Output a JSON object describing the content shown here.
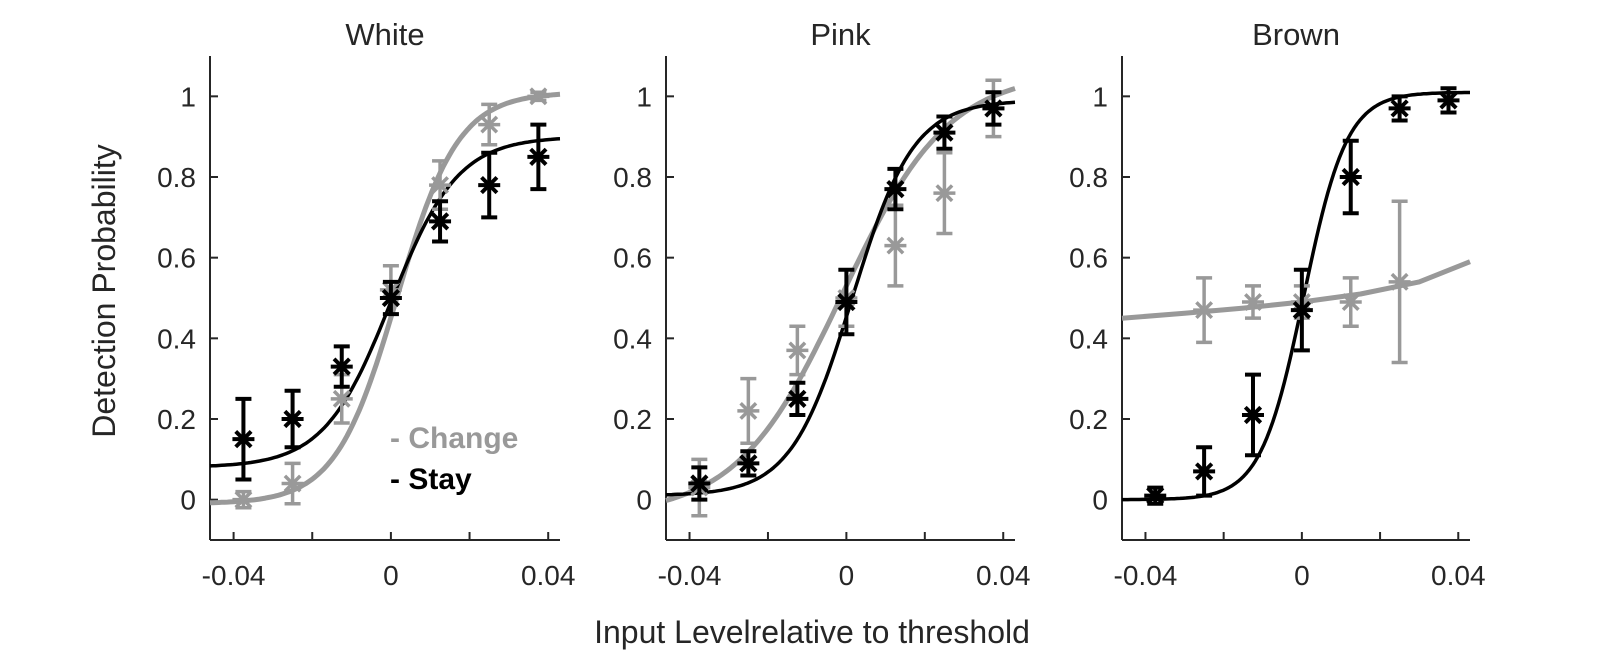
{
  "colors": {
    "change": "#999999",
    "stay": "#000000",
    "axis": "#262626"
  },
  "chart_data": {
    "type": "line",
    "shared": {
      "xlabel": "Input Levelrelative to threshold",
      "ylabel": "Detection Probability",
      "xlim": [
        -0.046,
        0.043
      ],
      "ylim": [
        -0.1,
        1.1
      ],
      "xticks": [
        -0.04,
        0,
        0.04
      ],
      "xtick_labels": [
        "-0.04",
        "0",
        "0.04"
      ],
      "yticks": [
        0,
        0.2,
        0.4,
        0.6,
        0.8,
        1
      ],
      "ytick_labels": [
        "0",
        "0.2",
        "0.4",
        "0.6",
        "0.8",
        "1"
      ],
      "x_minor_ticks": [
        -0.02,
        0.02
      ],
      "grid": false,
      "legend": {
        "position": "bottom-right of first panel",
        "entries": [
          "- Change",
          "- Stay"
        ]
      }
    },
    "panels": [
      {
        "title": "White",
        "series": [
          {
            "name": "Change",
            "color": "#999999",
            "points": [
              {
                "x": -0.0375,
                "y": 0.0,
                "err": 0.02
              },
              {
                "x": -0.025,
                "y": 0.04,
                "err": 0.05
              },
              {
                "x": -0.0125,
                "y": 0.25,
                "err": 0.06
              },
              {
                "x": 0.0,
                "y": 0.52,
                "err": 0.06
              },
              {
                "x": 0.0125,
                "y": 0.78,
                "err": 0.06
              },
              {
                "x": 0.025,
                "y": 0.93,
                "err": 0.05
              },
              {
                "x": 0.0375,
                "y": 1.0,
                "err": 0.01
              }
            ],
            "fit": {
              "lower": -0.01,
              "upper": 1.01,
              "mu": 0.0015,
              "s": 0.0078
            }
          },
          {
            "name": "Stay",
            "color": "#000000",
            "points": [
              {
                "x": -0.0375,
                "y": 0.15,
                "err": 0.1
              },
              {
                "x": -0.025,
                "y": 0.2,
                "err": 0.07
              },
              {
                "x": -0.0125,
                "y": 0.33,
                "err": 0.05
              },
              {
                "x": 0.0,
                "y": 0.5,
                "err": 0.04
              },
              {
                "x": 0.0125,
                "y": 0.69,
                "err": 0.05
              },
              {
                "x": 0.025,
                "y": 0.78,
                "err": 0.08
              },
              {
                "x": 0.0375,
                "y": 0.85,
                "err": 0.08
              }
            ],
            "fit": {
              "lower": 0.08,
              "upper": 0.9,
              "mu": 0.0,
              "s": 0.0085
            }
          }
        ]
      },
      {
        "title": "Pink",
        "series": [
          {
            "name": "Change",
            "color": "#999999",
            "points": [
              {
                "x": -0.0375,
                "y": 0.03,
                "err": 0.07
              },
              {
                "x": -0.025,
                "y": 0.22,
                "err": 0.08
              },
              {
                "x": -0.0125,
                "y": 0.37,
                "err": 0.06
              },
              {
                "x": 0.0,
                "y": 0.5,
                "err": 0.07
              },
              {
                "x": 0.0125,
                "y": 0.63,
                "err": 0.1
              },
              {
                "x": 0.025,
                "y": 0.76,
                "err": 0.1
              },
              {
                "x": 0.0375,
                "y": 0.97,
                "err": 0.07
              }
            ],
            "fit": {
              "lower": -0.04,
              "upper": 1.06,
              "mu": -0.001,
              "s": 0.0135
            }
          },
          {
            "name": "Stay",
            "color": "#000000",
            "points": [
              {
                "x": -0.0375,
                "y": 0.04,
                "err": 0.04
              },
              {
                "x": -0.025,
                "y": 0.09,
                "err": 0.03
              },
              {
                "x": -0.0125,
                "y": 0.25,
                "err": 0.04
              },
              {
                "x": 0.0,
                "y": 0.49,
                "err": 0.08
              },
              {
                "x": 0.0125,
                "y": 0.77,
                "err": 0.05
              },
              {
                "x": 0.025,
                "y": 0.91,
                "err": 0.04
              },
              {
                "x": 0.0375,
                "y": 0.97,
                "err": 0.04
              }
            ],
            "fit": {
              "lower": 0.01,
              "upper": 0.99,
              "mu": 0.0015,
              "s": 0.0078
            }
          }
        ]
      },
      {
        "title": "Brown",
        "series": [
          {
            "name": "Change",
            "color": "#999999",
            "points": [
              {
                "x": -0.025,
                "y": 0.47,
                "err": 0.08
              },
              {
                "x": -0.0125,
                "y": 0.49,
                "err": 0.04
              },
              {
                "x": 0.0,
                "y": 0.49,
                "err": 0.04
              },
              {
                "x": 0.0125,
                "y": 0.49,
                "err": 0.06
              },
              {
                "x": 0.025,
                "y": 0.54,
                "err": 0.2
              }
            ],
            "fit_line": {
              "x": [
                -0.046,
                -0.03,
                -0.015,
                0.0,
                0.015,
                0.03,
                0.043
              ],
              "y": [
                0.45,
                0.462,
                0.475,
                0.49,
                0.51,
                0.54,
                0.59
              ]
            }
          },
          {
            "name": "Stay",
            "color": "#000000",
            "points": [
              {
                "x": -0.0375,
                "y": 0.01,
                "err": 0.02
              },
              {
                "x": -0.025,
                "y": 0.07,
                "err": 0.06
              },
              {
                "x": -0.0125,
                "y": 0.21,
                "err": 0.1
              },
              {
                "x": 0.0,
                "y": 0.47,
                "err": 0.1
              },
              {
                "x": 0.0125,
                "y": 0.8,
                "err": 0.09
              },
              {
                "x": 0.025,
                "y": 0.97,
                "err": 0.03
              },
              {
                "x": 0.0375,
                "y": 0.99,
                "err": 0.03
              }
            ],
            "fit": {
              "lower": 0.0,
              "upper": 1.01,
              "mu": 0.0005,
              "s": 0.0055
            }
          }
        ]
      }
    ]
  }
}
